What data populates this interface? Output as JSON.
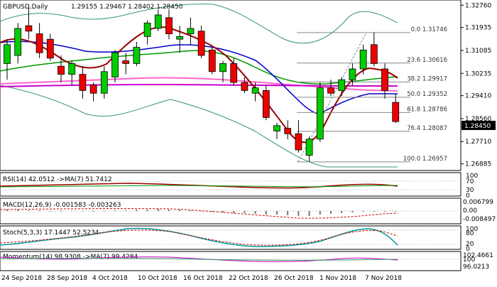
{
  "header": {
    "symbol": "GBPUSD,Daily",
    "ohlc": "1.29155 1.29467 1.28402 1.28450"
  },
  "price_axis": {
    "ticks": [
      "1.32760",
      "1.31935",
      "1.31085",
      "1.30235",
      "1.29410",
      "1.28560",
      "1.27710",
      "1.26885"
    ],
    "current_price": "1.28450"
  },
  "fibonacci": [
    {
      "label": "0.0 1.31746",
      "value": 1.31746
    },
    {
      "label": "23.6 1.30616",
      "value": 1.30616
    },
    {
      "label": "38.2 1.29917",
      "value": 1.29917
    },
    {
      "label": "50.0 1.29352",
      "value": 1.29352
    },
    {
      "label": "61.8 1.28786",
      "value": 1.28786
    },
    {
      "label": "76.4 1.28087",
      "value": 1.28087
    },
    {
      "label": "100.0 1.26957",
      "value": 1.26957
    }
  ],
  "x_axis": {
    "labels": [
      "24 Sep 2018",
      "28 Sep 2018",
      "4 Oct 2018",
      "10 Oct 2018",
      "16 Oct 2018",
      "22 Oct 2018",
      "26 Oct 2018",
      "1 Nov 2018",
      "7 Nov 2018"
    ]
  },
  "indicators": {
    "rsi": {
      "title": "RSI(14) 42.0512 ->MA(7) 51.7412",
      "ticks": [
        "100",
        "70",
        "30",
        "0"
      ]
    },
    "macd": {
      "title": "MACD(12,26,9) -0.001583 -0.003263",
      "ticks": [
        "0.006799",
        "0.00",
        "-0.008497"
      ]
    },
    "stoch": {
      "title": "Stoch(5,3,3) 17.1447 52.5234",
      "ticks": [
        "100",
        "80",
        "20",
        "0"
      ]
    },
    "momentum": {
      "title": "Momentum(14) 98.9308 ->MA(7) 99.4284",
      "ticks": [
        "102.4661",
        "100",
        "96.0213"
      ]
    }
  },
  "colors": {
    "bull": "#00cc00",
    "bear": "#ee0000",
    "ma_red": "#990000",
    "ma_blue": "#0000cc",
    "ma_green": "#009900",
    "ma_pink": "#ff66cc",
    "ma_magenta": "#cc00cc",
    "bollinger": "#339966",
    "fibo": "#888888"
  },
  "chart_data": {
    "type": "candlestick",
    "x": [
      "2018-09-21",
      "2018-09-24",
      "2018-09-25",
      "2018-09-26",
      "2018-09-27",
      "2018-09-28",
      "2018-10-01",
      "2018-10-02",
      "2018-10-03",
      "2018-10-04",
      "2018-10-05",
      "2018-10-08",
      "2018-10-09",
      "2018-10-10",
      "2018-10-11",
      "2018-10-12",
      "2018-10-15",
      "2018-10-16",
      "2018-10-17",
      "2018-10-18",
      "2018-10-19",
      "2018-10-22",
      "2018-10-23",
      "2018-10-24",
      "2018-10-25",
      "2018-10-26",
      "2018-10-29",
      "2018-10-30",
      "2018-10-31",
      "2018-11-01",
      "2018-11-02",
      "2018-11-05",
      "2018-11-06",
      "2018-11-07",
      "2018-11-08",
      "2018-11-09",
      "2018-11-12"
    ],
    "series": [
      {
        "name": "GBPUSD",
        "values": [
          {
            "o": 1.306,
            "h": 1.315,
            "l": 1.3,
            "c": 1.313
          },
          {
            "o": 1.309,
            "h": 1.321,
            "l": 1.306,
            "c": 1.319
          },
          {
            "o": 1.32,
            "h": 1.327,
            "l": 1.315,
            "c": 1.318
          },
          {
            "o": 1.317,
            "h": 1.321,
            "l": 1.308,
            "c": 1.31
          },
          {
            "o": 1.315,
            "h": 1.317,
            "l": 1.307,
            "c": 1.308
          },
          {
            "o": 1.305,
            "h": 1.309,
            "l": 1.299,
            "c": 1.302
          },
          {
            "o": 1.302,
            "h": 1.307,
            "l": 1.298,
            "c": 1.306
          },
          {
            "o": 1.302,
            "h": 1.305,
            "l": 1.293,
            "c": 1.296
          },
          {
            "o": 1.298,
            "h": 1.299,
            "l": 1.292,
            "c": 1.295
          },
          {
            "o": 1.295,
            "h": 1.305,
            "l": 1.293,
            "c": 1.303
          },
          {
            "o": 1.301,
            "h": 1.311,
            "l": 1.299,
            "c": 1.31
          },
          {
            "o": 1.307,
            "h": 1.31,
            "l": 1.302,
            "c": 1.306
          },
          {
            "o": 1.306,
            "h": 1.314,
            "l": 1.305,
            "c": 1.312
          },
          {
            "o": 1.316,
            "h": 1.322,
            "l": 1.313,
            "c": 1.321
          },
          {
            "o": 1.319,
            "h": 1.326,
            "l": 1.318,
            "c": 1.324
          },
          {
            "o": 1.323,
            "h": 1.326,
            "l": 1.315,
            "c": 1.317
          },
          {
            "o": 1.315,
            "h": 1.32,
            "l": 1.31,
            "c": 1.316
          },
          {
            "o": 1.317,
            "h": 1.323,
            "l": 1.313,
            "c": 1.319
          },
          {
            "o": 1.318,
            "h": 1.32,
            "l": 1.308,
            "c": 1.309
          },
          {
            "o": 1.311,
            "h": 1.312,
            "l": 1.302,
            "c": 1.303
          },
          {
            "o": 1.303,
            "h": 1.307,
            "l": 1.299,
            "c": 1.306
          },
          {
            "o": 1.306,
            "h": 1.308,
            "l": 1.298,
            "c": 1.299
          },
          {
            "o": 1.299,
            "h": 1.301,
            "l": 1.295,
            "c": 1.296
          },
          {
            "o": 1.295,
            "h": 1.299,
            "l": 1.292,
            "c": 1.297
          },
          {
            "o": 1.296,
            "h": 1.298,
            "l": 1.285,
            "c": 1.286
          },
          {
            "o": 1.281,
            "h": 1.284,
            "l": 1.278,
            "c": 1.283
          },
          {
            "o": 1.282,
            "h": 1.285,
            "l": 1.278,
            "c": 1.28
          },
          {
            "o": 1.28,
            "h": 1.285,
            "l": 1.273,
            "c": 1.274
          },
          {
            "o": 1.272,
            "h": 1.279,
            "l": 1.2696,
            "c": 1.278
          },
          {
            "o": 1.278,
            "h": 1.299,
            "l": 1.277,
            "c": 1.297
          },
          {
            "o": 1.297,
            "h": 1.3,
            "l": 1.294,
            "c": 1.295
          },
          {
            "o": 1.296,
            "h": 1.301,
            "l": 1.294,
            "c": 1.3
          },
          {
            "o": 1.3,
            "h": 1.306,
            "l": 1.298,
            "c": 1.304
          },
          {
            "o": 1.304,
            "h": 1.313,
            "l": 1.302,
            "c": 1.311
          },
          {
            "o": 1.313,
            "h": 1.3175,
            "l": 1.305,
            "c": 1.306
          },
          {
            "o": 1.304,
            "h": 1.306,
            "l": 1.293,
            "c": 1.296
          },
          {
            "o": 1.2916,
            "h": 1.2947,
            "l": 1.284,
            "c": 1.2845
          }
        ]
      }
    ],
    "ylim": [
      1.2669,
      1.329
    ]
  }
}
